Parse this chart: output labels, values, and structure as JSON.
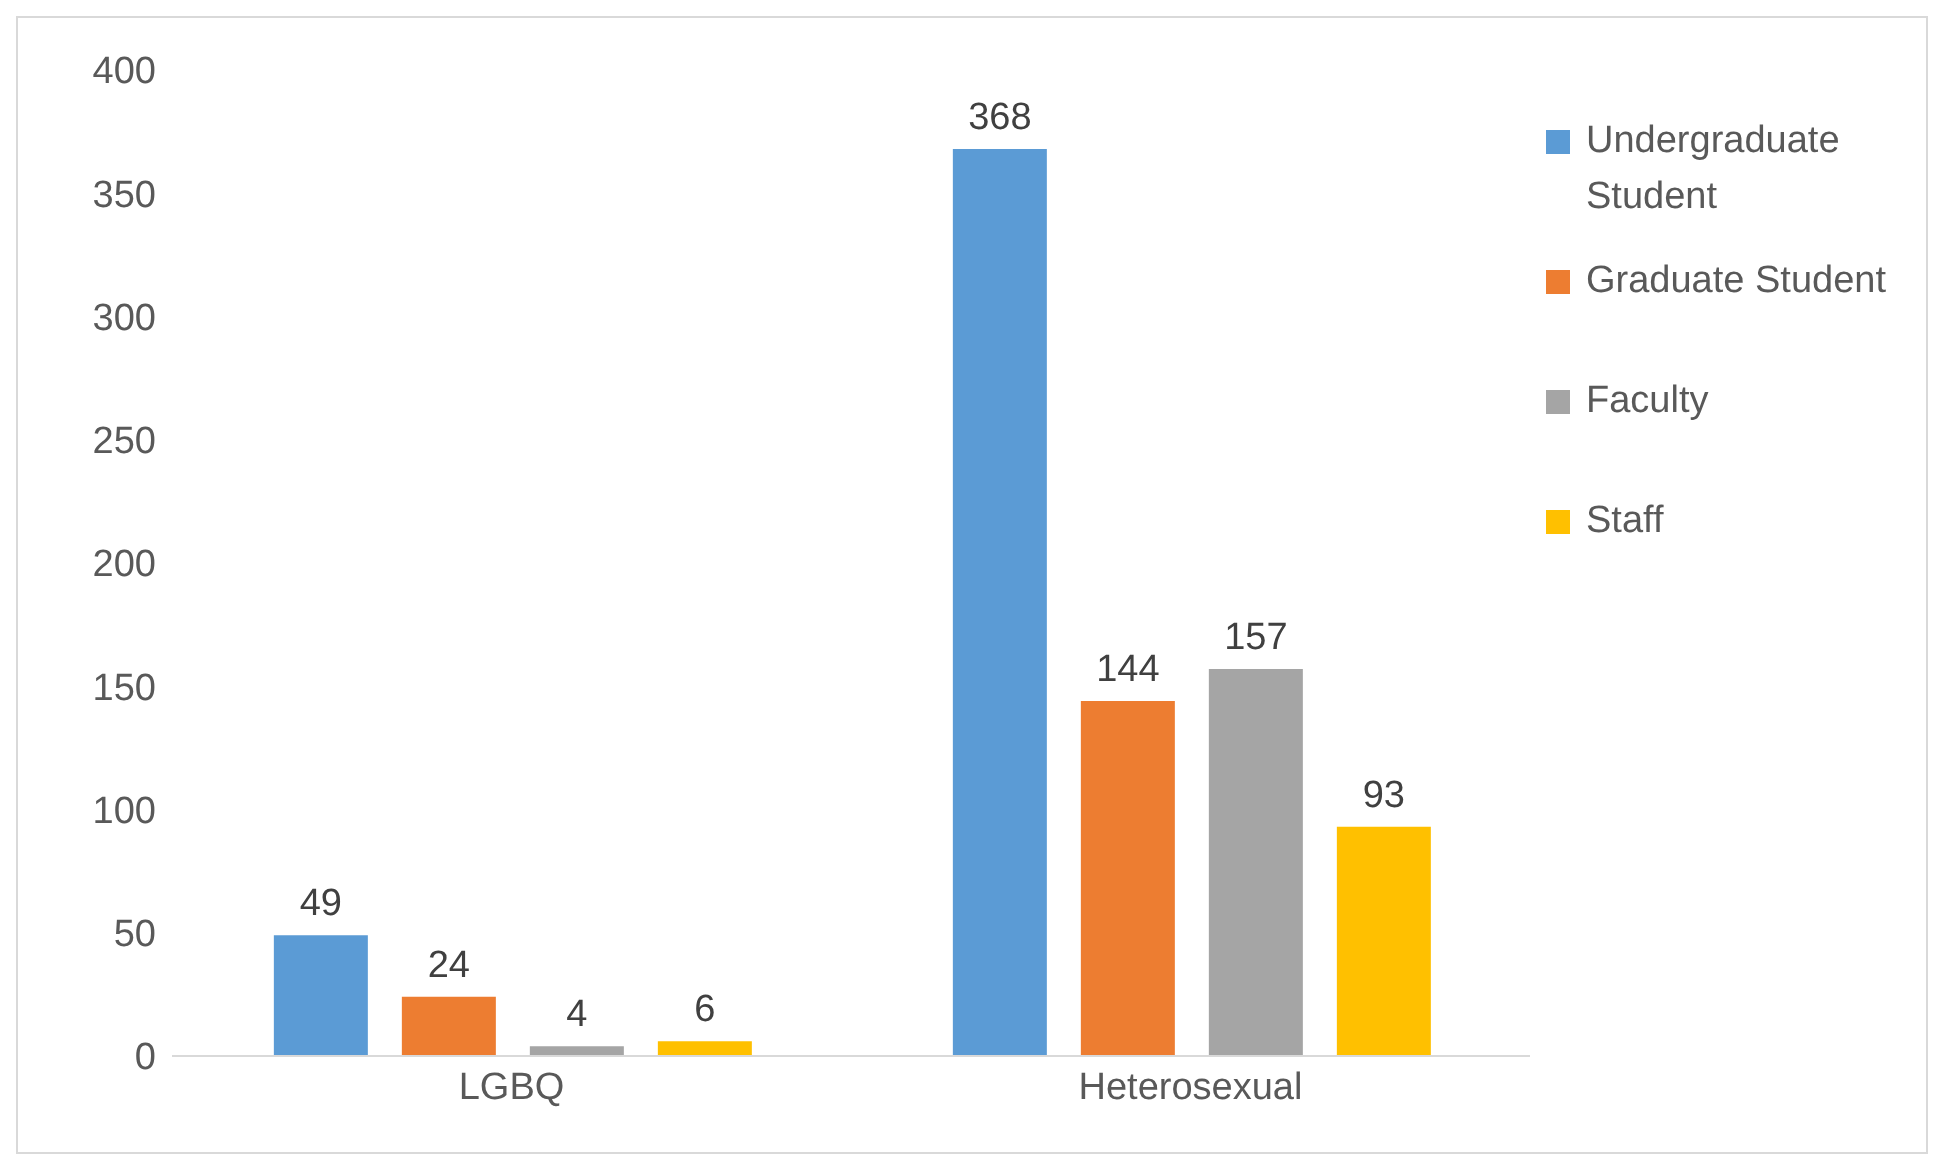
{
  "chart_data": {
    "type": "bar",
    "categories": [
      "LGBQ",
      "Heterosexual"
    ],
    "series": [
      {
        "name": "Undergraduate Student",
        "color": "#5b9bd5",
        "values": [
          49,
          368
        ]
      },
      {
        "name": "Graduate Student",
        "color": "#ed7d31",
        "values": [
          24,
          144
        ]
      },
      {
        "name": "Faculty",
        "color": "#a5a5a5",
        "values": [
          4,
          157
        ]
      },
      {
        "name": "Staff",
        "color": "#ffc000",
        "values": [
          6,
          93
        ]
      }
    ],
    "ylim": [
      0,
      400
    ],
    "yticks": [
      0,
      50,
      100,
      150,
      200,
      250,
      300,
      350,
      400
    ],
    "data_labels": true,
    "legend": "top right"
  }
}
